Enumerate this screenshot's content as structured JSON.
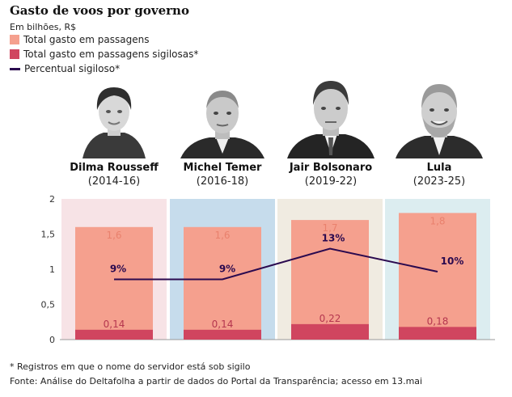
{
  "header": {
    "title": "Gasto de voos por governo",
    "unit": "Em bilhões, R$"
  },
  "legend": [
    {
      "label": "Total gasto em passagens",
      "color": "#f5a08e"
    },
    {
      "label": "Total gasto em passagens sigilosas*",
      "color": "#d0455f"
    },
    {
      "label": "Percentual sigiloso*",
      "color": "#2b0a4f"
    }
  ],
  "presidents": [
    {
      "name": "Dilma Rousseff",
      "term": "(2014-16)",
      "band_color": "#f7e3e6",
      "icon": "portrait-icon"
    },
    {
      "name": "Michel Temer",
      "term": "(2016-18)",
      "band_color": "#c6dcec",
      "icon": "portrait-icon"
    },
    {
      "name": "Jair Bolsonaro",
      "term": "(2019-22)",
      "band_color": "#f0ebe1",
      "icon": "portrait-icon"
    },
    {
      "name": "Lula",
      "term": "(2023-25)",
      "band_color": "#dcedf0",
      "icon": "portrait-icon"
    }
  ],
  "chart_data": {
    "type": "bar",
    "categories": [
      "Dilma Rousseff",
      "Michel Temer",
      "Jair Bolsonaro",
      "Lula"
    ],
    "series": [
      {
        "name": "Total gasto em passagens",
        "values": [
          1.6,
          1.6,
          1.7,
          1.8
        ],
        "labels": [
          "1,6",
          "1,6",
          "1,7",
          "1,8"
        ]
      },
      {
        "name": "Total gasto em passagens sigilosas*",
        "values": [
          0.14,
          0.14,
          0.22,
          0.18
        ],
        "labels": [
          "0,14",
          "0,14",
          "0,22",
          "0,18"
        ]
      },
      {
        "name": "Percentual sigiloso*",
        "values": [
          9,
          9,
          13,
          10
        ],
        "labels": [
          "9%",
          "9%",
          "13%",
          "10%"
        ]
      }
    ],
    "ylim": [
      0,
      2
    ],
    "yticks": [
      0,
      0.5,
      1,
      1.5,
      2
    ],
    "ytick_labels": [
      "0",
      "0,5",
      "1",
      "1,5",
      "2"
    ],
    "grid": false
  },
  "footer": {
    "note": "* Registros em que o nome do servidor está sob sigilo",
    "source": "Fonte: Análise do Deltafolha a partir de dados do Portal da Transparência; acesso em 13.mai"
  }
}
